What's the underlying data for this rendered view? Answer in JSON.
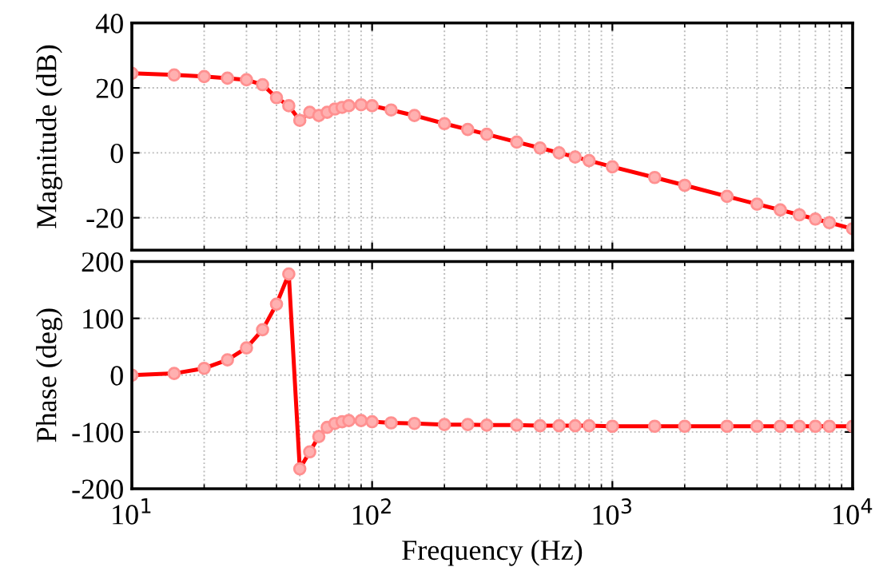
{
  "chart_data": [
    {
      "type": "line",
      "ylabel": "Magnitude (dB)",
      "log": "x",
      "xlim": [
        10,
        10000
      ],
      "xticks": [
        10,
        100,
        1000,
        10000
      ],
      "ylim": [
        -30,
        40
      ],
      "yticks": [
        -20,
        0,
        20,
        40
      ],
      "grid": true,
      "tick_labels": "y",
      "marker": "circle",
      "line_style": "solid",
      "x": [
        10,
        15,
        20,
        25,
        30,
        35,
        40,
        45,
        50,
        55,
        60,
        65,
        70,
        75,
        80,
        90,
        100,
        120,
        150,
        200,
        250,
        300,
        400,
        500,
        600,
        700,
        800,
        1000,
        1500,
        2000,
        3000,
        4000,
        5000,
        6000,
        7000,
        8000,
        10000
      ],
      "series": [
        {
          "color": "#ff0000",
          "values": [
            24.5,
            24,
            23.5,
            23,
            22.5,
            21,
            17,
            14.5,
            10,
            12.5,
            11.5,
            12.5,
            13.5,
            14,
            14.5,
            14.8,
            14.5,
            13.2,
            11.5,
            9,
            7.2,
            5.7,
            3.3,
            1.5,
            0,
            -1.3,
            -2.4,
            -4.3,
            -7.6,
            -10,
            -13.4,
            -15.8,
            -17.6,
            -19.1,
            -20.4,
            -21.5,
            -23.4
          ]
        }
      ]
    },
    {
      "type": "line",
      "xlabel": "Frequency (Hz)",
      "ylabel": "Phase (deg)",
      "log": "x",
      "xlim": [
        10,
        10000
      ],
      "xticks": [
        {
          "value": 10,
          "label": "10$^{1}$"
        },
        {
          "value": 100,
          "label": "10$^{2}$"
        },
        {
          "value": 1000,
          "label": "10$^{3}$"
        },
        {
          "value": 10000,
          "label": "10$^{4}$"
        }
      ],
      "ylim": [
        -200,
        200
      ],
      "yticks": [
        -200,
        -100,
        0,
        100,
        200
      ],
      "grid": true,
      "marker": "circle",
      "line_style": "solid",
      "x": [
        10,
        15,
        20,
        25,
        30,
        35,
        40,
        45,
        50,
        55,
        60,
        65,
        70,
        75,
        80,
        90,
        100,
        120,
        150,
        200,
        250,
        300,
        400,
        500,
        600,
        700,
        800,
        1000,
        1500,
        2000,
        3000,
        4000,
        5000,
        6000,
        7000,
        8000,
        10000
      ],
      "series": [
        {
          "color": "#ff0000",
          "values": [
            0,
            3,
            12,
            27,
            48,
            80,
            125,
            178,
            -165,
            -135,
            -108,
            -92,
            -85,
            -82,
            -80,
            -80,
            -82,
            -84,
            -85,
            -87,
            -87,
            -88,
            -88,
            -89,
            -89,
            -89,
            -89,
            -90,
            -90,
            -90,
            -90,
            -90,
            -90,
            -90,
            -90,
            -90,
            -90
          ]
        }
      ]
    }
  ]
}
